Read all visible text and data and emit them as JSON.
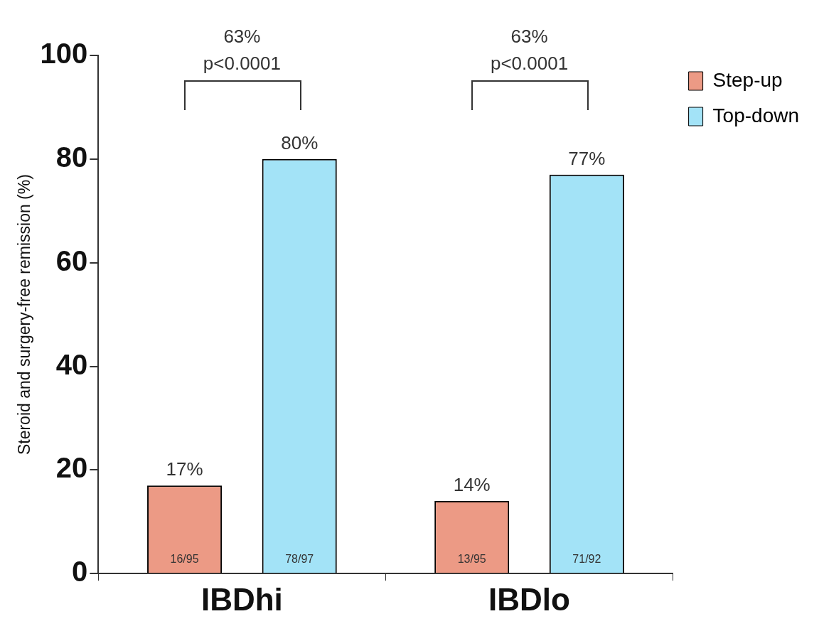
{
  "chart_data": {
    "type": "bar",
    "ylabel": "Steroid and surgery-free remission (%)",
    "categories": [
      "IBDhi",
      "IBDlo"
    ],
    "series": [
      {
        "name": "Step-up",
        "color": "#ec9a85",
        "values": [
          17,
          14
        ],
        "value_labels": [
          "17%",
          "14%"
        ]
      },
      {
        "name": "Top-down",
        "color": "#a3e3f7",
        "values": [
          80,
          77
        ],
        "value_labels": [
          "80%",
          "77%"
        ]
      }
    ],
    "ylim": [
      0,
      100
    ],
    "yticks": [
      0,
      20,
      40,
      60,
      80,
      100
    ],
    "grid": false,
    "legend": "top right",
    "annotations": [
      "16/95",
      "78/97",
      "63%",
      "p<0.0001",
      "13/95",
      "71/92",
      "63%",
      "p<0.0001"
    ]
  }
}
